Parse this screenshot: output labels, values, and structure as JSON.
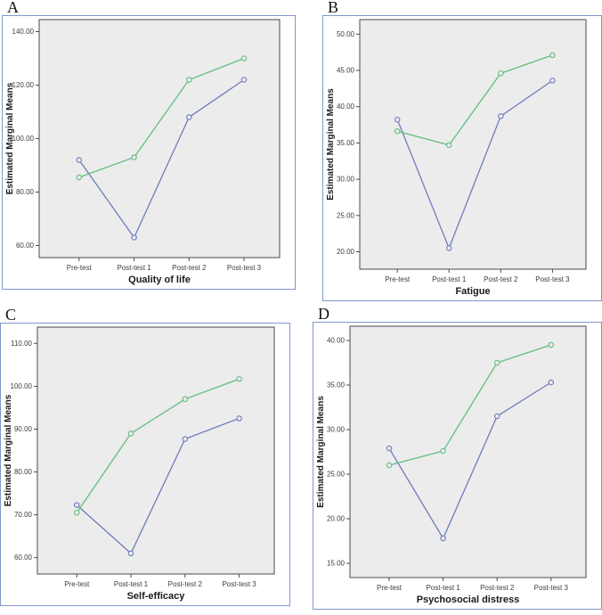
{
  "figure": {
    "background": "#ffffff",
    "panel_border_color": "#8196c9",
    "plot_background": "#ececec",
    "axis_color": "#4a4a4a",
    "marker_style": "open-circle"
  },
  "chart_data": [
    {
      "panel_letter": "A",
      "type": "line",
      "title": "Quality of life",
      "ylabel": "Estimated Marginal Means",
      "xlabel": "Quality of life",
      "categories": [
        "Pre-test",
        "Post-test 1",
        "Post-test 2",
        "Post-test 3"
      ],
      "yticks": [
        60,
        80,
        100,
        120,
        140
      ],
      "ytick_labels": [
        "60.00",
        "80.00",
        "100.00",
        "120.00",
        "140.00"
      ],
      "ylim": [
        55.5,
        144.5
      ],
      "grid": false,
      "legend": "none",
      "series": [
        {
          "name": "blue-series",
          "color": "#6d7cbd",
          "values": [
            92,
            63,
            108,
            122
          ]
        },
        {
          "name": "green-series",
          "color": "#62bd80",
          "values": [
            85.5,
            93,
            122,
            130
          ]
        }
      ]
    },
    {
      "panel_letter": "B",
      "type": "line",
      "title": "Fatigue",
      "ylabel": "Estimated Marginal Means",
      "xlabel": "Fatigue",
      "categories": [
        "Pre-test",
        "Post-test 1",
        "Post-test 2",
        "Post-test 3"
      ],
      "yticks": [
        20,
        25,
        30,
        35,
        40,
        45,
        50
      ],
      "ytick_labels": [
        "20.00",
        "25.00",
        "30.00",
        "35.00",
        "40.00",
        "45.00",
        "50.00"
      ],
      "ylim": [
        17.6,
        52.0
      ],
      "grid": false,
      "legend": "none",
      "series": [
        {
          "name": "blue-series",
          "color": "#6d7cbd",
          "values": [
            38.2,
            20.5,
            38.7,
            43.6
          ]
        },
        {
          "name": "green-series",
          "color": "#62bd80",
          "values": [
            36.6,
            34.7,
            44.6,
            47.1
          ]
        }
      ]
    },
    {
      "panel_letter": "C",
      "type": "line",
      "title": "Self-efficacy",
      "ylabel": "Estimated Marginal Means",
      "xlabel": "Self-efficacy",
      "categories": [
        "Pre-test",
        "Post-test 1",
        "Post-test 2",
        "Post-test 3"
      ],
      "yticks": [
        60,
        70,
        80,
        90,
        100,
        110
      ],
      "ytick_labels": [
        "60.00",
        "70.00",
        "80.00",
        "90.00",
        "100.00",
        "110.00"
      ],
      "ylim": [
        56.2,
        113.8
      ],
      "grid": false,
      "legend": "none",
      "series": [
        {
          "name": "blue-series",
          "color": "#6d7cbd",
          "values": [
            72.3,
            61,
            87.7,
            92.5
          ]
        },
        {
          "name": "green-series",
          "color": "#62bd80",
          "values": [
            70.5,
            89,
            97,
            101.7
          ]
        }
      ]
    },
    {
      "panel_letter": "D",
      "type": "line",
      "title": "Psychosocial distress",
      "ylabel": "Estimated Marginal Means",
      "xlabel": "Psychosocial distress",
      "categories": [
        "Pre-test",
        "Post-test 1",
        "Post-test 2",
        "Post-test 3"
      ],
      "yticks": [
        15,
        20,
        25,
        30,
        35,
        40
      ],
      "ytick_labels": [
        "15.00",
        "20.00",
        "25.00",
        "30.00",
        "35.00",
        "40.00"
      ],
      "ylim": [
        13.4,
        41.6
      ],
      "grid": false,
      "legend": "none",
      "series": [
        {
          "name": "blue-series",
          "color": "#6d7cbd",
          "values": [
            27.9,
            17.8,
            31.5,
            35.3
          ]
        },
        {
          "name": "green-series",
          "color": "#62bd80",
          "values": [
            26,
            27.6,
            37.5,
            39.5
          ]
        }
      ]
    }
  ]
}
